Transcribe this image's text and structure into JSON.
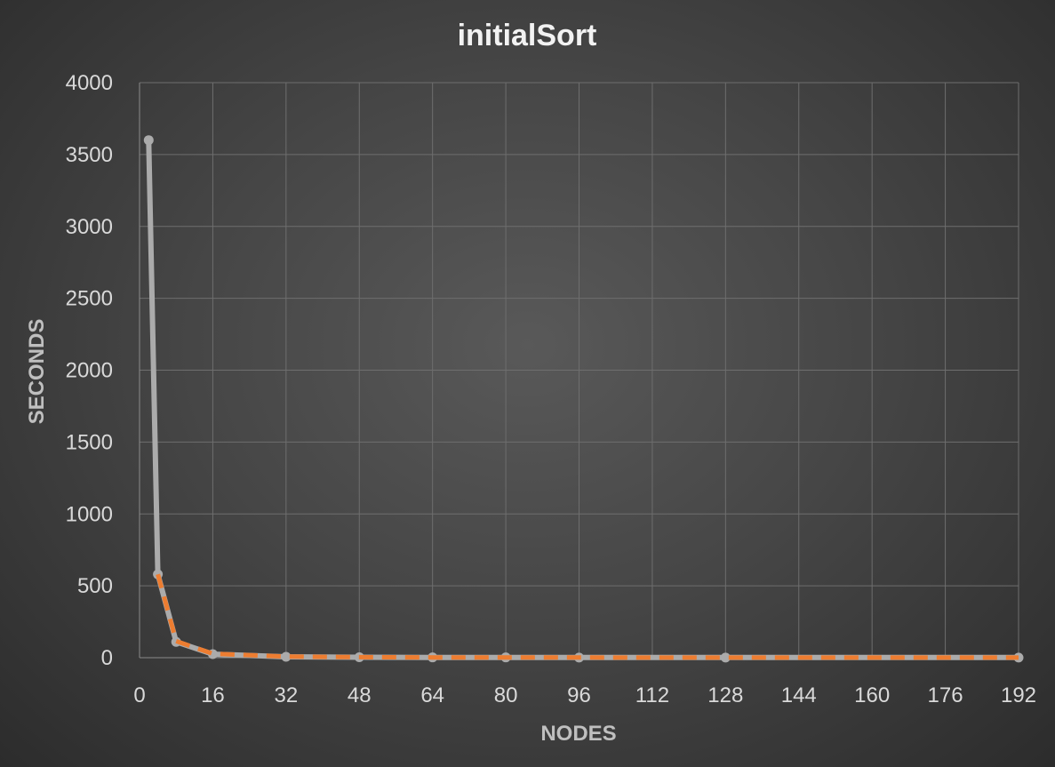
{
  "chart_data": {
    "type": "line",
    "title": "initialSort",
    "xlabel": "NODES",
    "ylabel": "SECONDS",
    "xlim": [
      0,
      192
    ],
    "ylim": [
      0,
      4000
    ],
    "x_ticks": [
      "0",
      "16",
      "32",
      "48",
      "64",
      "80",
      "96",
      "112",
      "128",
      "144",
      "160",
      "176",
      "192"
    ],
    "y_ticks": [
      "0",
      "500",
      "1000",
      "1500",
      "2000",
      "2500",
      "3000",
      "3500",
      "4000"
    ],
    "grid": true,
    "series": [
      {
        "color": "#ababab",
        "style": "solid",
        "markers": true,
        "x": [
          2,
          4,
          8,
          16,
          32,
          48,
          64,
          80,
          96,
          128,
          192
        ],
        "y": [
          3600,
          580,
          110,
          25,
          6,
          3,
          2,
          2,
          1,
          1,
          1
        ]
      },
      {
        "color": "#ed7d31",
        "style": "dashed",
        "markers": false,
        "x": [
          4,
          8,
          16,
          32,
          48,
          64,
          80,
          96,
          128,
          192
        ],
        "y": [
          580,
          115,
          28,
          8,
          4,
          2,
          1.5,
          1,
          0.8,
          0.5
        ]
      }
    ]
  }
}
